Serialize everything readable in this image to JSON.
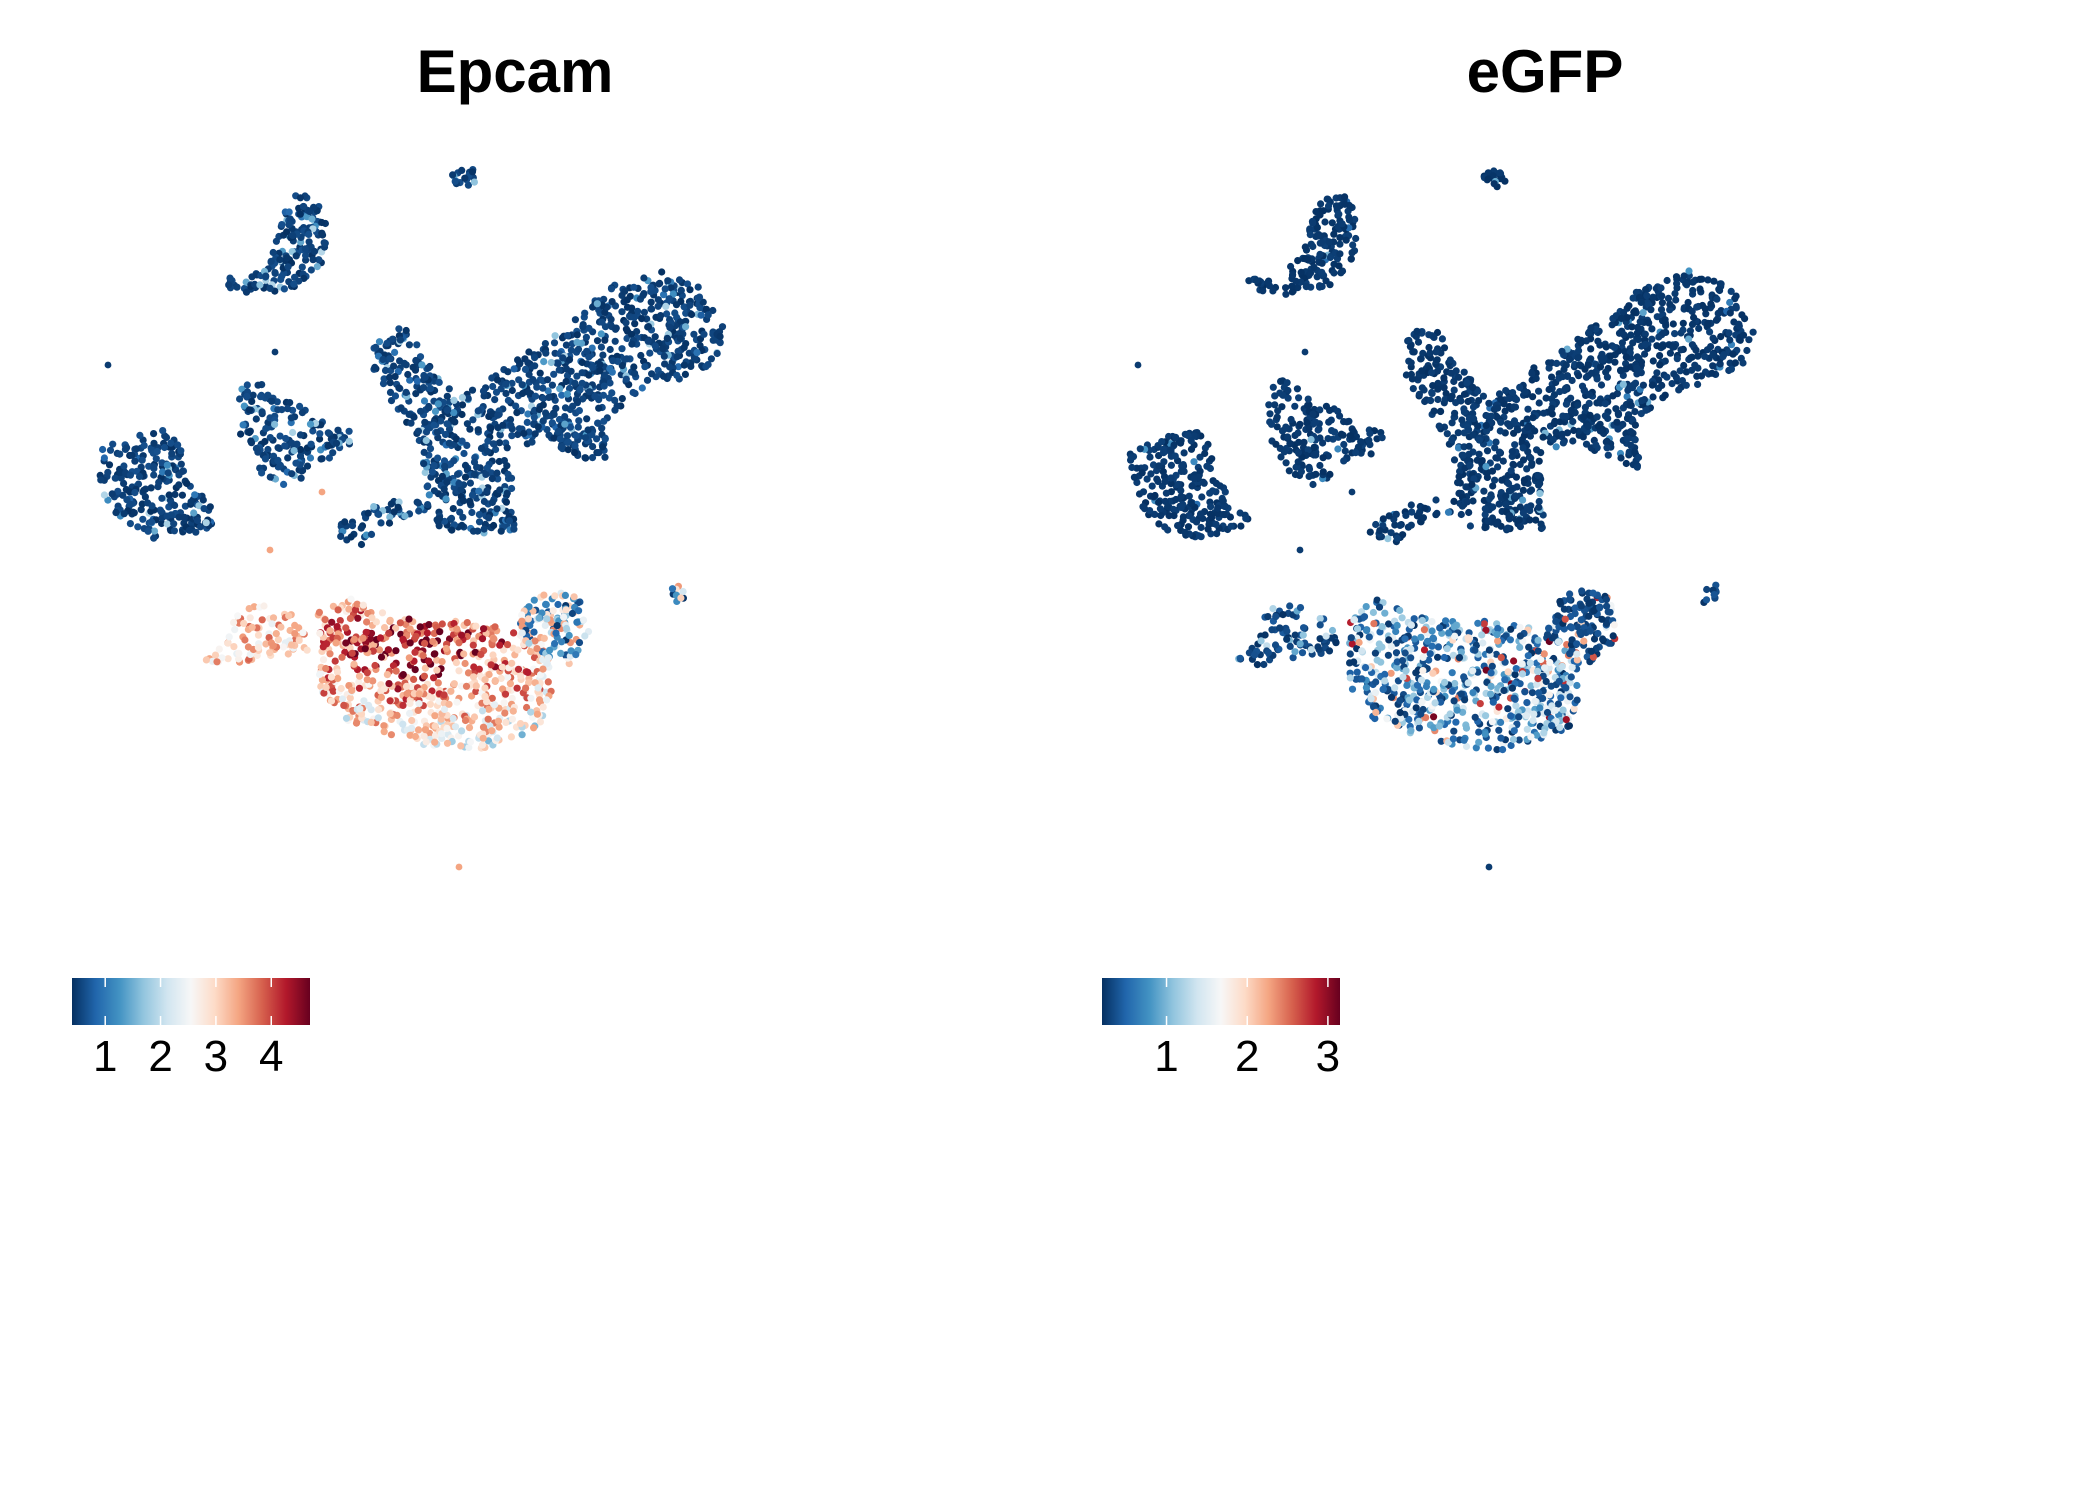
{
  "chart_data": [
    {
      "type": "scatter",
      "title": "Epcam",
      "feature": "Epcam",
      "colorscale": [
        "#053061",
        "#2166ac",
        "#4393c3",
        "#92c5de",
        "#d1e5f0",
        "#f7f7f7",
        "#fddbc7",
        "#f4a582",
        "#d6604d",
        "#b2182b",
        "#67001f"
      ],
      "color_range": [
        0.4,
        4.7
      ],
      "legend": {
        "position": "bottom-left",
        "ticks": [
          1,
          2,
          3,
          4
        ],
        "tick_labels": [
          "1",
          "2",
          "3",
          "4"
        ]
      },
      "grid": false,
      "axes_visible": false
    },
    {
      "type": "scatter",
      "title": "eGFP",
      "feature": "eGFP",
      "colorscale": [
        "#053061",
        "#2166ac",
        "#4393c3",
        "#92c5de",
        "#d1e5f0",
        "#f7f7f7",
        "#fddbc7",
        "#f4a582",
        "#d6604d",
        "#b2182b",
        "#67001f"
      ],
      "color_range": [
        0.2,
        3.15
      ],
      "legend": {
        "position": "bottom-left",
        "ticks": [
          1,
          2,
          3
        ],
        "tick_labels": [
          "1",
          "2",
          "3"
        ]
      },
      "grid": false,
      "axes_visible": false
    }
  ]
}
